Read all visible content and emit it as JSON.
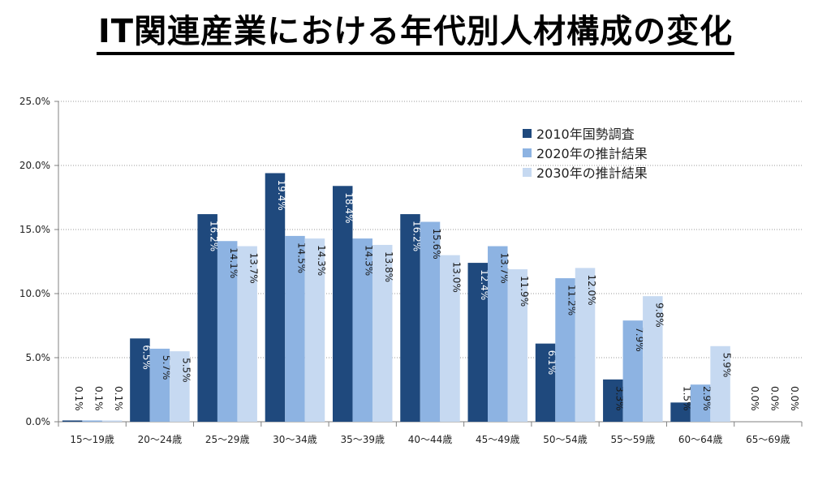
{
  "title": "IT関連産業における年代別人材構成の変化",
  "colors": {
    "s2010": "#1f497d",
    "s2020": "#8db3e2",
    "s2030": "#c6d9f1"
  },
  "chart_data": {
    "type": "bar",
    "title": "IT関連産業における年代別人材構成の変化",
    "xlabel": "",
    "ylabel": "",
    "ylim": [
      0,
      25
    ],
    "yticks": [
      "0.0%",
      "5.0%",
      "10.0%",
      "15.0%",
      "20.0%",
      "25.0%"
    ],
    "grid": true,
    "legend_position": "top-right",
    "categories": [
      "15～19歳",
      "20～24歳",
      "25～29歳",
      "30～34歳",
      "35～39歳",
      "40～44歳",
      "45～49歳",
      "50～54歳",
      "55～59歳",
      "60～64歳",
      "65～69歳"
    ],
    "series": [
      {
        "name": "2010年国勢調査",
        "values": [
          0.1,
          6.5,
          16.2,
          19.4,
          18.4,
          16.2,
          12.4,
          6.1,
          3.3,
          1.5,
          0.0
        ],
        "labels": [
          "0.1%",
          "6.5%",
          "16.2%",
          "19.4%",
          "18.4%",
          "16.2%",
          "12.4%",
          "6.1%",
          "3.3%",
          "1.5%",
          "0.0%"
        ]
      },
      {
        "name": "2020年の推計結果",
        "values": [
          0.1,
          5.7,
          14.1,
          14.5,
          14.3,
          15.6,
          13.7,
          11.2,
          7.9,
          2.9,
          0.0
        ],
        "labels": [
          "0.1%",
          "5.7%",
          "14.1%",
          "14.5%",
          "14.3%",
          "15.6%",
          "13.7%",
          "11.2%",
          "7.9%",
          "2.9%",
          "0.0%"
        ]
      },
      {
        "name": "2030年の推計結果",
        "values": [
          0.1,
          5.5,
          13.7,
          14.3,
          13.8,
          13.0,
          11.9,
          12.0,
          9.8,
          5.9,
          0.0
        ],
        "labels": [
          "0.1%",
          "5.5%",
          "13.7%",
          "14.3%",
          "13.8%",
          "13.0%",
          "11.9%",
          "12.0%",
          "9.8%",
          "5.9%",
          "0.0%"
        ]
      }
    ]
  }
}
